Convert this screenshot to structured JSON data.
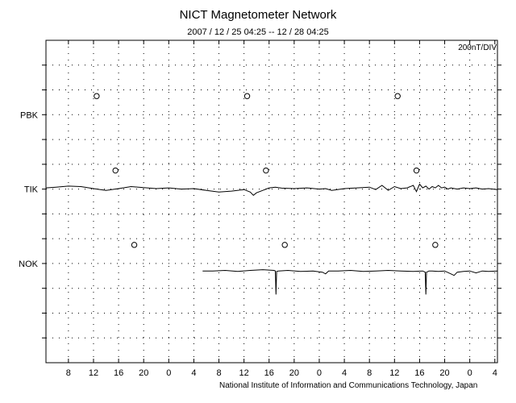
{
  "chart_data": {
    "type": "line",
    "title": "NICT Magnetometer Network",
    "subtitle": "2007 / 12 / 25   04:25 -- 12 / 28   04:25",
    "scale_label": "200nT/DIV",
    "credit": "National Institute of Information and Communications Technology, Japan",
    "x_tick_labels": [
      "8",
      "12",
      "16",
      "20",
      "0",
      "4",
      "8",
      "12",
      "16",
      "20",
      "0",
      "4",
      "8",
      "12",
      "16",
      "20",
      "0",
      "4"
    ],
    "x_tick_hours": [
      8,
      12,
      16,
      20,
      24,
      28,
      32,
      36,
      40,
      44,
      48,
      52,
      56,
      60,
      64,
      68,
      72,
      76
    ],
    "x_range_hours": [
      4.4167,
      76.4167
    ],
    "y_divisions": 13,
    "grid": true,
    "stations": [
      {
        "name": "PBK",
        "label_division": 3,
        "midnight_marker_hours": [
          12.5,
          36.5,
          60.5
        ],
        "series": []
      },
      {
        "name": "TIK",
        "label_division": 6,
        "midnight_marker_hours": [
          15.5,
          39.5,
          63.5
        ],
        "series": [
          [
            4.4,
            0.05
          ],
          [
            6,
            0.08
          ],
          [
            8,
            0.12
          ],
          [
            10,
            0.1
          ],
          [
            12,
            0.02
          ],
          [
            14,
            -0.05
          ],
          [
            16,
            0.02
          ],
          [
            18,
            0.1
          ],
          [
            20,
            0.06
          ],
          [
            22,
            0.02
          ],
          [
            24,
            0.05
          ],
          [
            26,
            0.0
          ],
          [
            28,
            0.02
          ],
          [
            30,
            -0.05
          ],
          [
            32,
            -0.12
          ],
          [
            34,
            -0.08
          ],
          [
            36,
            -0.02
          ],
          [
            37,
            -0.12
          ],
          [
            37.5,
            -0.25
          ],
          [
            38,
            -0.15
          ],
          [
            39,
            -0.05
          ],
          [
            40,
            0.05
          ],
          [
            41,
            0.08
          ],
          [
            42,
            0.04
          ],
          [
            44,
            0.02
          ],
          [
            46,
            0.05
          ],
          [
            48,
            0.0
          ],
          [
            49,
            0.02
          ],
          [
            50,
            -0.05
          ],
          [
            52,
            0.02
          ],
          [
            54,
            0.05
          ],
          [
            56,
            0.08
          ],
          [
            57,
            -0.02
          ],
          [
            58,
            0.15
          ],
          [
            59,
            -0.05
          ],
          [
            60,
            0.1
          ],
          [
            61,
            0.02
          ],
          [
            62,
            0.05
          ],
          [
            63,
            0.15
          ],
          [
            63.5,
            -0.1
          ],
          [
            64,
            0.2
          ],
          [
            64.5,
            0.05
          ],
          [
            65,
            0.12
          ],
          [
            65.5,
            0.0
          ],
          [
            66,
            0.1
          ],
          [
            66.5,
            0.05
          ],
          [
            67,
            0.15
          ],
          [
            67.5,
            0.05
          ],
          [
            68,
            0.08
          ],
          [
            68.5,
            0.0
          ],
          [
            69,
            0.05
          ],
          [
            70,
            0.0
          ],
          [
            71,
            0.05
          ],
          [
            72,
            0.02
          ],
          [
            73,
            0.05
          ],
          [
            74,
            0.0
          ],
          [
            75,
            0.02
          ],
          [
            76.4,
            -0.02
          ]
        ]
      },
      {
        "name": "NOK",
        "label_division": 9,
        "midnight_marker_hours": [
          18.5,
          42.5,
          66.5
        ],
        "series": [
          [
            29.4,
            -0.3
          ],
          [
            31,
            -0.3
          ],
          [
            33,
            -0.28
          ],
          [
            35,
            -0.32
          ],
          [
            37,
            -0.28
          ],
          [
            39,
            -0.25
          ],
          [
            40.8,
            -0.28
          ],
          [
            41,
            -0.3
          ],
          [
            41.1,
            -1.25
          ],
          [
            41.2,
            -0.32
          ],
          [
            41.5,
            -0.3
          ],
          [
            43,
            -0.28
          ],
          [
            45,
            -0.32
          ],
          [
            47,
            -0.3
          ],
          [
            48.5,
            -0.35
          ],
          [
            49,
            -0.42
          ],
          [
            49.5,
            -0.3
          ],
          [
            51,
            -0.3
          ],
          [
            53,
            -0.28
          ],
          [
            55,
            -0.32
          ],
          [
            57,
            -0.3
          ],
          [
            59,
            -0.28
          ],
          [
            61,
            -0.3
          ],
          [
            63,
            -0.32
          ],
          [
            64.5,
            -0.3
          ],
          [
            64.9,
            -0.35
          ],
          [
            65,
            -1.25
          ],
          [
            65.1,
            -0.35
          ],
          [
            65.5,
            -0.3
          ],
          [
            66,
            -0.3
          ],
          [
            67,
            -0.32
          ],
          [
            68,
            -0.3
          ],
          [
            69,
            -0.42
          ],
          [
            69.5,
            -0.48
          ],
          [
            70,
            -0.35
          ],
          [
            71,
            -0.32
          ],
          [
            72,
            -0.3
          ],
          [
            73,
            -0.38
          ],
          [
            74,
            -0.3
          ],
          [
            75,
            -0.32
          ],
          [
            76.4,
            -0.3
          ]
        ]
      }
    ]
  }
}
